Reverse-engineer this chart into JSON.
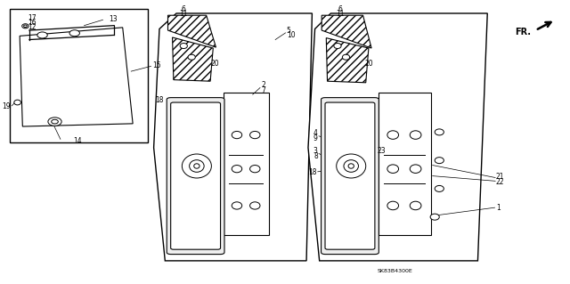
{
  "bg_color": "#ffffff",
  "line_color": "#000000",
  "part_number_text": "SK83B4300E",
  "fig_width": 6.4,
  "fig_height": 3.19,
  "dpi": 100
}
